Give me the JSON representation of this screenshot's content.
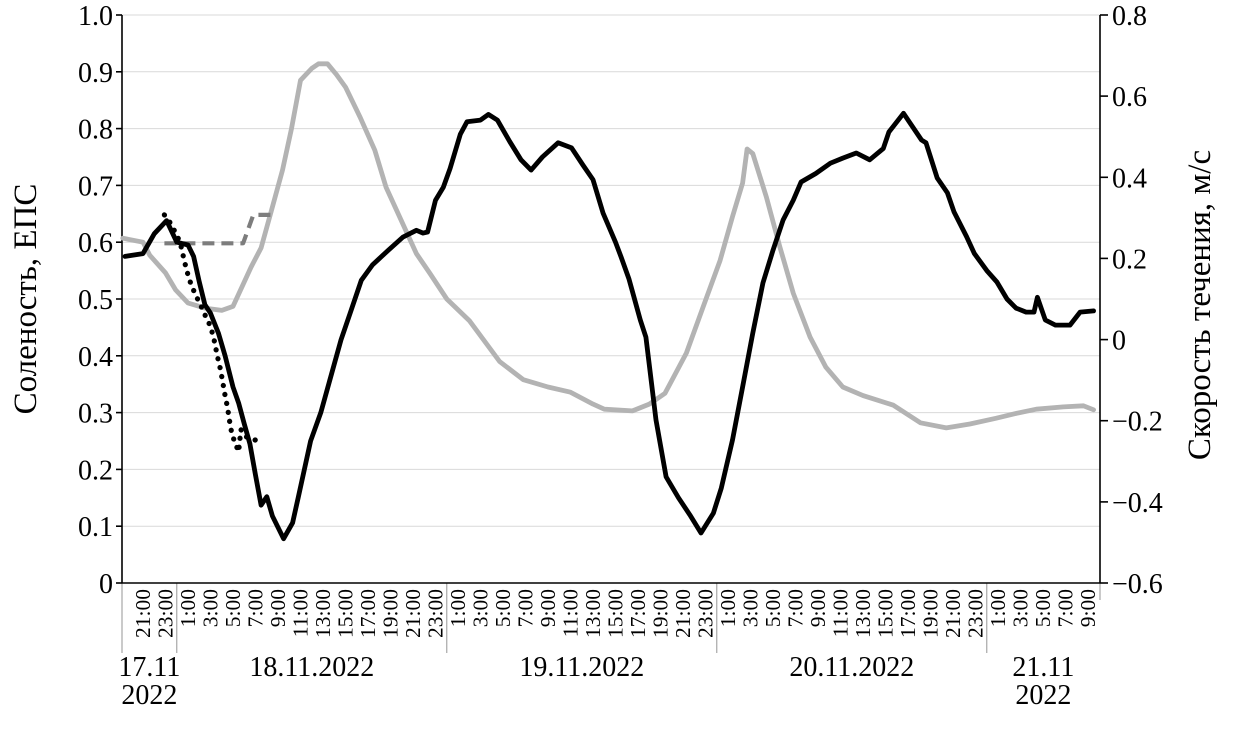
{
  "chart_data": {
    "type": "line",
    "title": "",
    "figure_kind": "dual-axis time series, no legend, white background",
    "colors": {
      "background": "#ffffff",
      "gridline": "#d9d9d9",
      "axis": "#000000",
      "day_separator": "#a6a6a6",
      "series_black": "#000000",
      "series_gray": "#b3b3b3",
      "series_dashed_gray": "#7d7d7d"
    },
    "left_axis": {
      "title": "Соленость, ЕПС",
      "min": 0,
      "max": 1.0,
      "ticks": [
        {
          "v": 1.0,
          "label": "1.0"
        },
        {
          "v": 0.9,
          "label": "0.9"
        },
        {
          "v": 0.8,
          "label": "0.8"
        },
        {
          "v": 0.7,
          "label": "0.7"
        },
        {
          "v": 0.6,
          "label": "0.6"
        },
        {
          "v": 0.5,
          "label": "0.5"
        },
        {
          "v": 0.4,
          "label": "0.4"
        },
        {
          "v": 0.3,
          "label": "0.3"
        },
        {
          "v": 0.2,
          "label": "0.2"
        },
        {
          "v": 0.1,
          "label": "0.1"
        },
        {
          "v": 0.0,
          "label": "0"
        }
      ]
    },
    "right_axis": {
      "title": "Скорость течения, м/с",
      "min": -0.6,
      "max": 0.8,
      "ticks": [
        {
          "v": 0.8,
          "label": "0.8"
        },
        {
          "v": 0.6,
          "label": "0.6"
        },
        {
          "v": 0.4,
          "label": "0.4"
        },
        {
          "v": 0.2,
          "label": "0.2"
        },
        {
          "v": 0.0,
          "label": "0"
        },
        {
          "v": -0.2,
          "label": "−0.2"
        },
        {
          "v": -0.4,
          "label": "−0.4"
        },
        {
          "v": -0.6,
          "label": "−0.6"
        }
      ]
    },
    "x_axis": {
      "start_label": "21:00 17.11.2022",
      "label_step_hours": 2,
      "time_labels": [
        "21:00",
        "23:00",
        "1:00",
        "3:00",
        "5:00",
        "7:00",
        "9:00",
        "11:00",
        "13:00",
        "15:00",
        "17:00",
        "19:00",
        "21:00",
        "23:00",
        "1:00",
        "3:00",
        "5:00",
        "7:00",
        "9:00",
        "11:00",
        "13:00",
        "15:00",
        "17:00",
        "19:00",
        "21:00",
        "23:00",
        "1:00",
        "3:00",
        "5:00",
        "7:00",
        "9:00",
        "11:00",
        "13:00",
        "15:00",
        "17:00",
        "19:00",
        "21:00",
        "23:00",
        "1:00",
        "3:00",
        "5:00",
        "7:00",
        "9:00"
      ],
      "day_separators_hours": [
        3,
        27,
        51,
        75
      ],
      "date_groups": [
        {
          "lines": [
            "17.11",
            "2022"
          ]
        },
        {
          "lines": [
            "18.11.2022"
          ]
        },
        {
          "lines": [
            "19.11.2022"
          ]
        },
        {
          "lines": [
            "20.11.2022"
          ]
        },
        {
          "lines": [
            "21.11",
            "2022"
          ]
        }
      ]
    },
    "series": [
      {
        "name": "gray-solid",
        "style": "solid",
        "color": "#b3b3b3",
        "value_axis_units": "left-axis scale",
        "points": [
          [
            -1.8,
            0.607
          ],
          [
            0,
            0.6
          ],
          [
            0.6,
            0.577
          ],
          [
            2,
            0.546
          ],
          [
            2.9,
            0.516
          ],
          [
            4,
            0.493
          ],
          [
            5.5,
            0.484
          ],
          [
            7,
            0.48
          ],
          [
            8,
            0.487
          ],
          [
            9.6,
            0.556
          ],
          [
            10.5,
            0.59
          ],
          [
            11.4,
            0.655
          ],
          [
            12.4,
            0.727
          ],
          [
            13.2,
            0.8
          ],
          [
            14,
            0.885
          ],
          [
            15,
            0.906
          ],
          [
            15.6,
            0.914
          ],
          [
            16.4,
            0.914
          ],
          [
            17.2,
            0.895
          ],
          [
            18,
            0.873
          ],
          [
            19.3,
            0.82
          ],
          [
            20.6,
            0.762
          ],
          [
            21.6,
            0.697
          ],
          [
            22.8,
            0.645
          ],
          [
            24.3,
            0.58
          ],
          [
            25.5,
            0.545
          ],
          [
            27,
            0.5
          ],
          [
            29,
            0.462
          ],
          [
            31.7,
            0.39
          ],
          [
            33.8,
            0.358
          ],
          [
            36,
            0.345
          ],
          [
            38,
            0.336
          ],
          [
            40,
            0.315
          ],
          [
            41,
            0.306
          ],
          [
            43.5,
            0.303
          ],
          [
            45,
            0.315
          ],
          [
            46.4,
            0.334
          ],
          [
            48.3,
            0.405
          ],
          [
            49.8,
            0.487
          ],
          [
            51.3,
            0.568
          ],
          [
            52.4,
            0.645
          ],
          [
            53.3,
            0.704
          ],
          [
            53.7,
            0.764
          ],
          [
            54.2,
            0.756
          ],
          [
            55.4,
            0.68
          ],
          [
            56.6,
            0.592
          ],
          [
            57.8,
            0.51
          ],
          [
            59.3,
            0.433
          ],
          [
            60.7,
            0.38
          ],
          [
            62.2,
            0.345
          ],
          [
            64,
            0.33
          ],
          [
            66.7,
            0.313
          ],
          [
            69.1,
            0.282
          ],
          [
            71.4,
            0.273
          ],
          [
            73.5,
            0.28
          ],
          [
            75.8,
            0.29
          ],
          [
            77.5,
            0.298
          ],
          [
            79.4,
            0.306
          ],
          [
            81.8,
            0.31
          ],
          [
            83.6,
            0.312
          ],
          [
            84.5,
            0.305
          ]
        ]
      },
      {
        "name": "gray-dashed",
        "style": "dashed",
        "color": "#7d7d7d",
        "value_axis_units": "left-axis scale",
        "points": [
          [
            1.9,
            0.598
          ],
          [
            8.9,
            0.598
          ],
          [
            9.8,
            0.648
          ],
          [
            11.4,
            0.648
          ]
        ]
      },
      {
        "name": "black-dotted",
        "style": "dotted",
        "color": "#000000",
        "value_axis_units": "left-axis scale",
        "points": [
          [
            1.9,
            0.648
          ],
          [
            2.5,
            0.632
          ],
          [
            2.9,
            0.616
          ],
          [
            3.3,
            0.6
          ],
          [
            3.7,
            0.565
          ],
          [
            4.1,
            0.535
          ],
          [
            4.6,
            0.51
          ],
          [
            5.1,
            0.49
          ],
          [
            5.6,
            0.468
          ],
          [
            6,
            0.452
          ],
          [
            6.3,
            0.43
          ],
          [
            6.6,
            0.4
          ],
          [
            6.9,
            0.375
          ],
          [
            7.1,
            0.352
          ],
          [
            7.3,
            0.33
          ],
          [
            7.5,
            0.31
          ],
          [
            7.7,
            0.285
          ],
          [
            7.9,
            0.262
          ],
          [
            8.2,
            0.246
          ],
          [
            8.5,
            0.231
          ],
          [
            8.7,
            0.27
          ],
          [
            9.1,
            0.258
          ],
          [
            10.5,
            0.248
          ]
        ]
      },
      {
        "name": "black-solid",
        "style": "solid",
        "color": "#000000",
        "value_axis_units": "left-axis scale",
        "points": [
          [
            -1.6,
            0.575
          ],
          [
            0,
            0.58
          ],
          [
            1,
            0.615
          ],
          [
            2.1,
            0.638
          ],
          [
            3,
            0.6
          ],
          [
            4,
            0.595
          ],
          [
            4.5,
            0.575
          ],
          [
            5,
            0.53
          ],
          [
            5.5,
            0.49
          ],
          [
            6,
            0.475
          ],
          [
            6.7,
            0.44
          ],
          [
            7.3,
            0.4
          ],
          [
            8,
            0.345
          ],
          [
            8.5,
            0.317
          ],
          [
            9,
            0.28
          ],
          [
            9.5,
            0.245
          ],
          [
            10,
            0.19
          ],
          [
            10.5,
            0.137
          ],
          [
            11,
            0.152
          ],
          [
            11.5,
            0.118
          ],
          [
            12.5,
            0.078
          ],
          [
            13.3,
            0.106
          ],
          [
            13.8,
            0.151
          ],
          [
            14.9,
            0.25
          ],
          [
            15.8,
            0.3
          ],
          [
            16.6,
            0.357
          ],
          [
            17.6,
            0.428
          ],
          [
            18.5,
            0.48
          ],
          [
            19.4,
            0.533
          ],
          [
            20.4,
            0.56
          ],
          [
            21.8,
            0.586
          ],
          [
            23.1,
            0.609
          ],
          [
            24.3,
            0.621
          ],
          [
            24.9,
            0.616
          ],
          [
            25.3,
            0.618
          ],
          [
            26,
            0.674
          ],
          [
            26.7,
            0.697
          ],
          [
            27.3,
            0.73
          ],
          [
            28.2,
            0.79
          ],
          [
            28.8,
            0.812
          ],
          [
            30,
            0.815
          ],
          [
            30.7,
            0.825
          ],
          [
            31.5,
            0.815
          ],
          [
            32.6,
            0.777
          ],
          [
            33.6,
            0.745
          ],
          [
            34.5,
            0.727
          ],
          [
            35.5,
            0.75
          ],
          [
            36.9,
            0.775
          ],
          [
            38.1,
            0.766
          ],
          [
            39.1,
            0.736
          ],
          [
            40,
            0.71
          ],
          [
            40.9,
            0.651
          ],
          [
            42,
            0.6
          ],
          [
            42.5,
            0.574
          ],
          [
            43.2,
            0.535
          ],
          [
            44.2,
            0.463
          ],
          [
            44.7,
            0.433
          ],
          [
            45.6,
            0.287
          ],
          [
            46.5,
            0.187
          ],
          [
            47.6,
            0.15
          ],
          [
            48.6,
            0.12
          ],
          [
            49.6,
            0.088
          ],
          [
            50.7,
            0.123
          ],
          [
            51.4,
            0.167
          ],
          [
            52.4,
            0.252
          ],
          [
            53.3,
            0.345
          ],
          [
            54.2,
            0.44
          ],
          [
            55.1,
            0.528
          ],
          [
            56,
            0.586
          ],
          [
            56.9,
            0.639
          ],
          [
            57.8,
            0.674
          ],
          [
            58.5,
            0.706
          ],
          [
            59.8,
            0.721
          ],
          [
            61.1,
            0.739
          ],
          [
            62.2,
            0.748
          ],
          [
            63.4,
            0.757
          ],
          [
            64.6,
            0.745
          ],
          [
            65.8,
            0.765
          ],
          [
            66.3,
            0.794
          ],
          [
            67.6,
            0.827
          ],
          [
            69.2,
            0.78
          ],
          [
            69.6,
            0.775
          ],
          [
            70.6,
            0.713
          ],
          [
            71.5,
            0.687
          ],
          [
            72.1,
            0.653
          ],
          [
            73.2,
            0.61
          ],
          [
            73.9,
            0.58
          ],
          [
            75,
            0.55
          ],
          [
            75.9,
            0.53
          ],
          [
            76.8,
            0.5
          ],
          [
            77.6,
            0.484
          ],
          [
            78.5,
            0.477
          ],
          [
            79.2,
            0.477
          ],
          [
            79.5,
            0.503
          ],
          [
            80.2,
            0.463
          ],
          [
            81.1,
            0.454
          ],
          [
            82.4,
            0.454
          ],
          [
            83.3,
            0.477
          ],
          [
            84.5,
            0.479
          ]
        ]
      }
    ]
  }
}
